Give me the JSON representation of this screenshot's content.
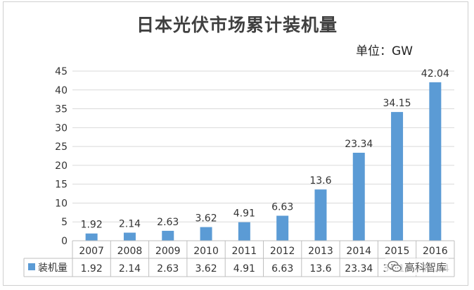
{
  "chart_data": {
    "type": "bar",
    "title": "日本光伏市场累计装机量",
    "unit_label": "单位：GW",
    "categories": [
      "2007",
      "2008",
      "2009",
      "2010",
      "2011",
      "2012",
      "2013",
      "2014",
      "2015",
      "2016"
    ],
    "series": [
      {
        "name": "装机量",
        "values": [
          1.92,
          2.14,
          2.63,
          3.62,
          4.91,
          6.63,
          13.6,
          23.34,
          34.15,
          42.04
        ],
        "labels": [
          "1.92",
          "2.14",
          "2.63",
          "3.62",
          "4.91",
          "6.63",
          "13.6",
          "23.34",
          "34.15",
          "42.04"
        ],
        "color": "#5b9bd5"
      }
    ],
    "ylim": [
      0,
      45
    ],
    "yticks": [
      0,
      5,
      10,
      15,
      20,
      25,
      30,
      35,
      40,
      45
    ],
    "grid": true,
    "data_table": true
  },
  "watermark": {
    "text": "高科智库",
    "icon": "wechat-icon"
  }
}
